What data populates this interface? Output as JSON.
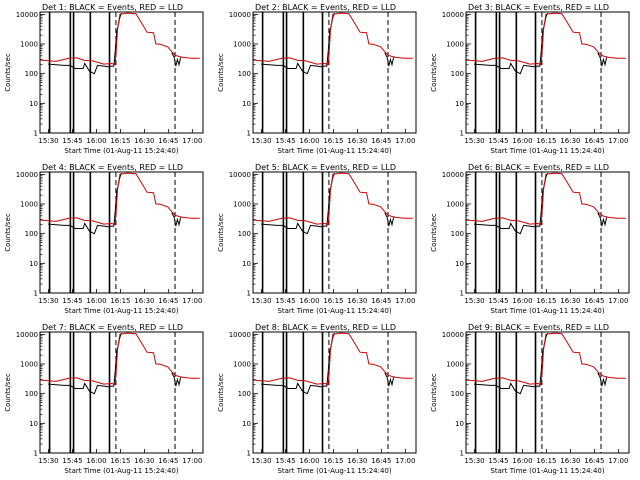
{
  "page": {
    "background": "#ffffff"
  },
  "chart_data": {
    "type": "line",
    "layout": "3x3 grid of panels",
    "scale": {
      "y": "log"
    },
    "colors": {
      "events": "#000000",
      "lld": "#cc0000",
      "frame": "#000000"
    },
    "xlabel": "Start Time (01-Aug-11 15:24:40)",
    "ylabel": "Counts/sec",
    "x_ticks": [
      "15:30",
      "15:45",
      "16:00",
      "16:15",
      "16:30",
      "16:45",
      "17:00"
    ],
    "x_tick_minutes": [
      5.33,
      20.33,
      35.33,
      50.33,
      65.33,
      80.33,
      95.33
    ],
    "xlim_minutes": [
      0,
      102
    ],
    "y_ticks": [
      "1",
      "10",
      "100",
      "1000",
      "10000"
    ],
    "ylim": [
      1,
      12000
    ],
    "markers": {
      "solid_vertical_minutes": [
        6,
        19,
        21,
        31.5,
        43.5
      ],
      "dashed_vertical_minutes": [
        47.5,
        84.5
      ]
    },
    "series": [
      {
        "name": "Events",
        "color": "#000000",
        "x_minutes": [
          5,
          10,
          15,
          19,
          19.5,
          22,
          25,
          27,
          28,
          31,
          34,
          36,
          40,
          42,
          45,
          46.2,
          47,
          48,
          50,
          51
        ],
        "values": [
          210,
          200,
          190,
          190,
          180,
          150,
          150,
          150,
          220,
          120,
          100,
          190,
          180,
          170,
          180,
          180,
          500,
          2500,
          8000,
          11000
        ]
      },
      {
        "name": "LLD",
        "color": "#cc0000",
        "x_minutes": [
          0,
          10,
          18,
          23,
          28,
          33,
          40,
          45,
          47,
          47.6,
          48.5,
          50,
          55,
          60,
          62,
          67,
          71,
          72.5,
          74,
          76,
          80,
          82.5,
          84.5,
          87,
          90,
          95,
          100
        ],
        "values": [
          290,
          260,
          330,
          340,
          280,
          270,
          210,
          220,
          200,
          500,
          3000,
          10000,
          11000,
          10500,
          7000,
          2500,
          2400,
          1000,
          1000,
          950,
          800,
          550,
          420,
          380,
          350,
          330,
          330
        ]
      },
      {
        "name": "Events (late)",
        "color": "#000000",
        "x_minutes": [
          82.5,
          84,
          85,
          86,
          87,
          88
        ],
        "values": [
          500,
          350,
          180,
          300,
          200,
          350
        ]
      }
    ],
    "panels": [
      {
        "title": "Det 1: BLACK = Events, RED = LLD"
      },
      {
        "title": "Det 2: BLACK = Events, RED = LLD"
      },
      {
        "title": "Det 3: BLACK = Events, RED = LLD"
      },
      {
        "title": "Det 4: BLACK = Events, RED = LLD"
      },
      {
        "title": "Det 5: BLACK = Events, RED = LLD"
      },
      {
        "title": "Det 6: BLACK = Events, RED = LLD"
      },
      {
        "title": "Det 7: BLACK = Events, RED = LLD"
      },
      {
        "title": "Det 8: BLACK = Events, RED = LLD"
      },
      {
        "title": "Det 9: BLACK = Events, RED = LLD"
      }
    ]
  }
}
